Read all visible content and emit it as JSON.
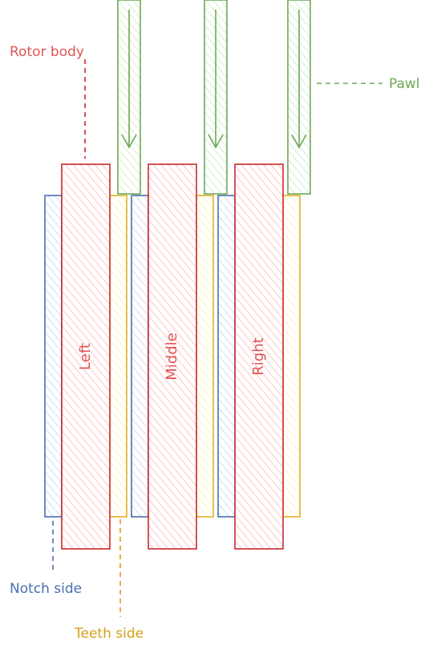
{
  "colors": {
    "rotor_stroke": "#c92a2a",
    "rotor_fill": "#ffc9c9",
    "notch_stroke": "#4a6fb0",
    "notch_fill": "#d0e1f9",
    "teeth_stroke": "#e0b020",
    "teeth_fill": "#fff3bf",
    "pawl_stroke": "#6fa855",
    "pawl_fill": "#d3f0d3",
    "label_red": "#e05555",
    "label_blue": "#4a6fb0",
    "label_yellow": "#d4a017",
    "label_green": "#6fa855"
  },
  "rotors": [
    {
      "label": "Left"
    },
    {
      "label": "Middle"
    },
    {
      "label": "Right"
    }
  ],
  "pawl_count": 3,
  "callouts": {
    "rotor_body": "Rotor body",
    "pawl": "Pawl",
    "notch_side": "Notch side",
    "teeth_side": "Teeth side"
  },
  "icons": {
    "pawl_arrow": "arrow-down-icon"
  }
}
